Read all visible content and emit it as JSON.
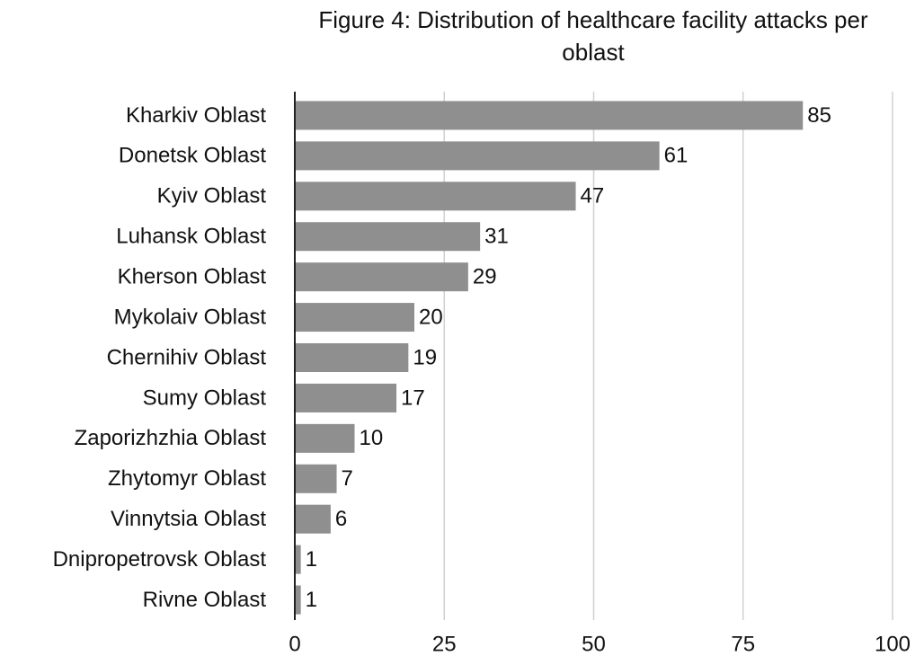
{
  "chart_data": {
    "type": "bar",
    "orientation": "horizontal",
    "title": "Figure 4: Distribution of healthcare facility attacks per oblast",
    "categories": [
      "Kharkiv Oblast",
      "Donetsk Oblast",
      "Kyiv Oblast",
      "Luhansk Oblast",
      "Kherson Oblast",
      "Mykolaiv Oblast",
      "Chernihiv Oblast",
      "Sumy Oblast",
      "Zaporizhzhia Oblast",
      "Zhytomyr Oblast",
      "Vinnytsia Oblast",
      "Dnipropetrovsk Oblast",
      "Rivne Oblast"
    ],
    "values": [
      85,
      61,
      47,
      31,
      29,
      20,
      19,
      17,
      10,
      7,
      6,
      1,
      1
    ],
    "color": "#8f8f8f",
    "xlim": [
      0,
      100
    ],
    "xticks": [
      0,
      25,
      50,
      75,
      100
    ],
    "grid": true
  }
}
